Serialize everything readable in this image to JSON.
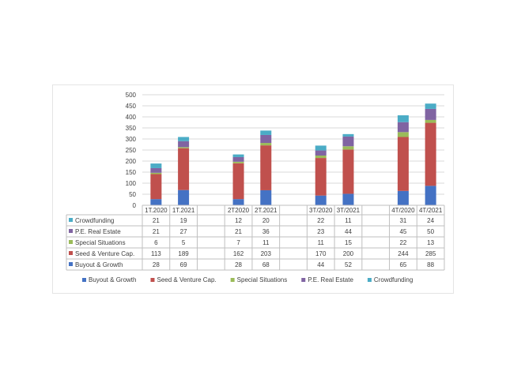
{
  "chart_data": {
    "type": "bar",
    "stacked": true,
    "categories": [
      "1T.2020",
      "1T.2021",
      "",
      "2T2020",
      "2T.2021",
      "",
      "3T/2020",
      "3T/2021",
      "",
      "4T/2020",
      "4T/2021"
    ],
    "series": [
      {
        "name": "Buyout & Growth",
        "color": "#4472c4",
        "values": [
          28,
          69,
          null,
          28,
          68,
          null,
          44,
          52,
          null,
          65,
          88
        ]
      },
      {
        "name": "Seed & Venture Cap.",
        "color": "#c0504d",
        "values": [
          113,
          189,
          null,
          162,
          203,
          null,
          170,
          200,
          null,
          244,
          285
        ]
      },
      {
        "name": "Special Situations",
        "color": "#9bbb59",
        "values": [
          6,
          5,
          null,
          7,
          11,
          null,
          11,
          15,
          null,
          22,
          13
        ]
      },
      {
        "name": "P.E. Real Estate",
        "color": "#8064a2",
        "values": [
          21,
          27,
          null,
          21,
          36,
          null,
          23,
          44,
          null,
          45,
          50
        ]
      },
      {
        "name": "Crowdfunding",
        "color": "#4bacc6",
        "values": [
          21,
          19,
          null,
          12,
          20,
          null,
          22,
          11,
          null,
          31,
          24
        ]
      }
    ],
    "yticks": [
      "0",
      "50",
      "100",
      "150",
      "200",
      "250",
      "300",
      "350",
      "400",
      "450",
      "500"
    ],
    "ylim": [
      0,
      500
    ],
    "grid": true,
    "data_table": true,
    "legend_position": "bottom"
  }
}
